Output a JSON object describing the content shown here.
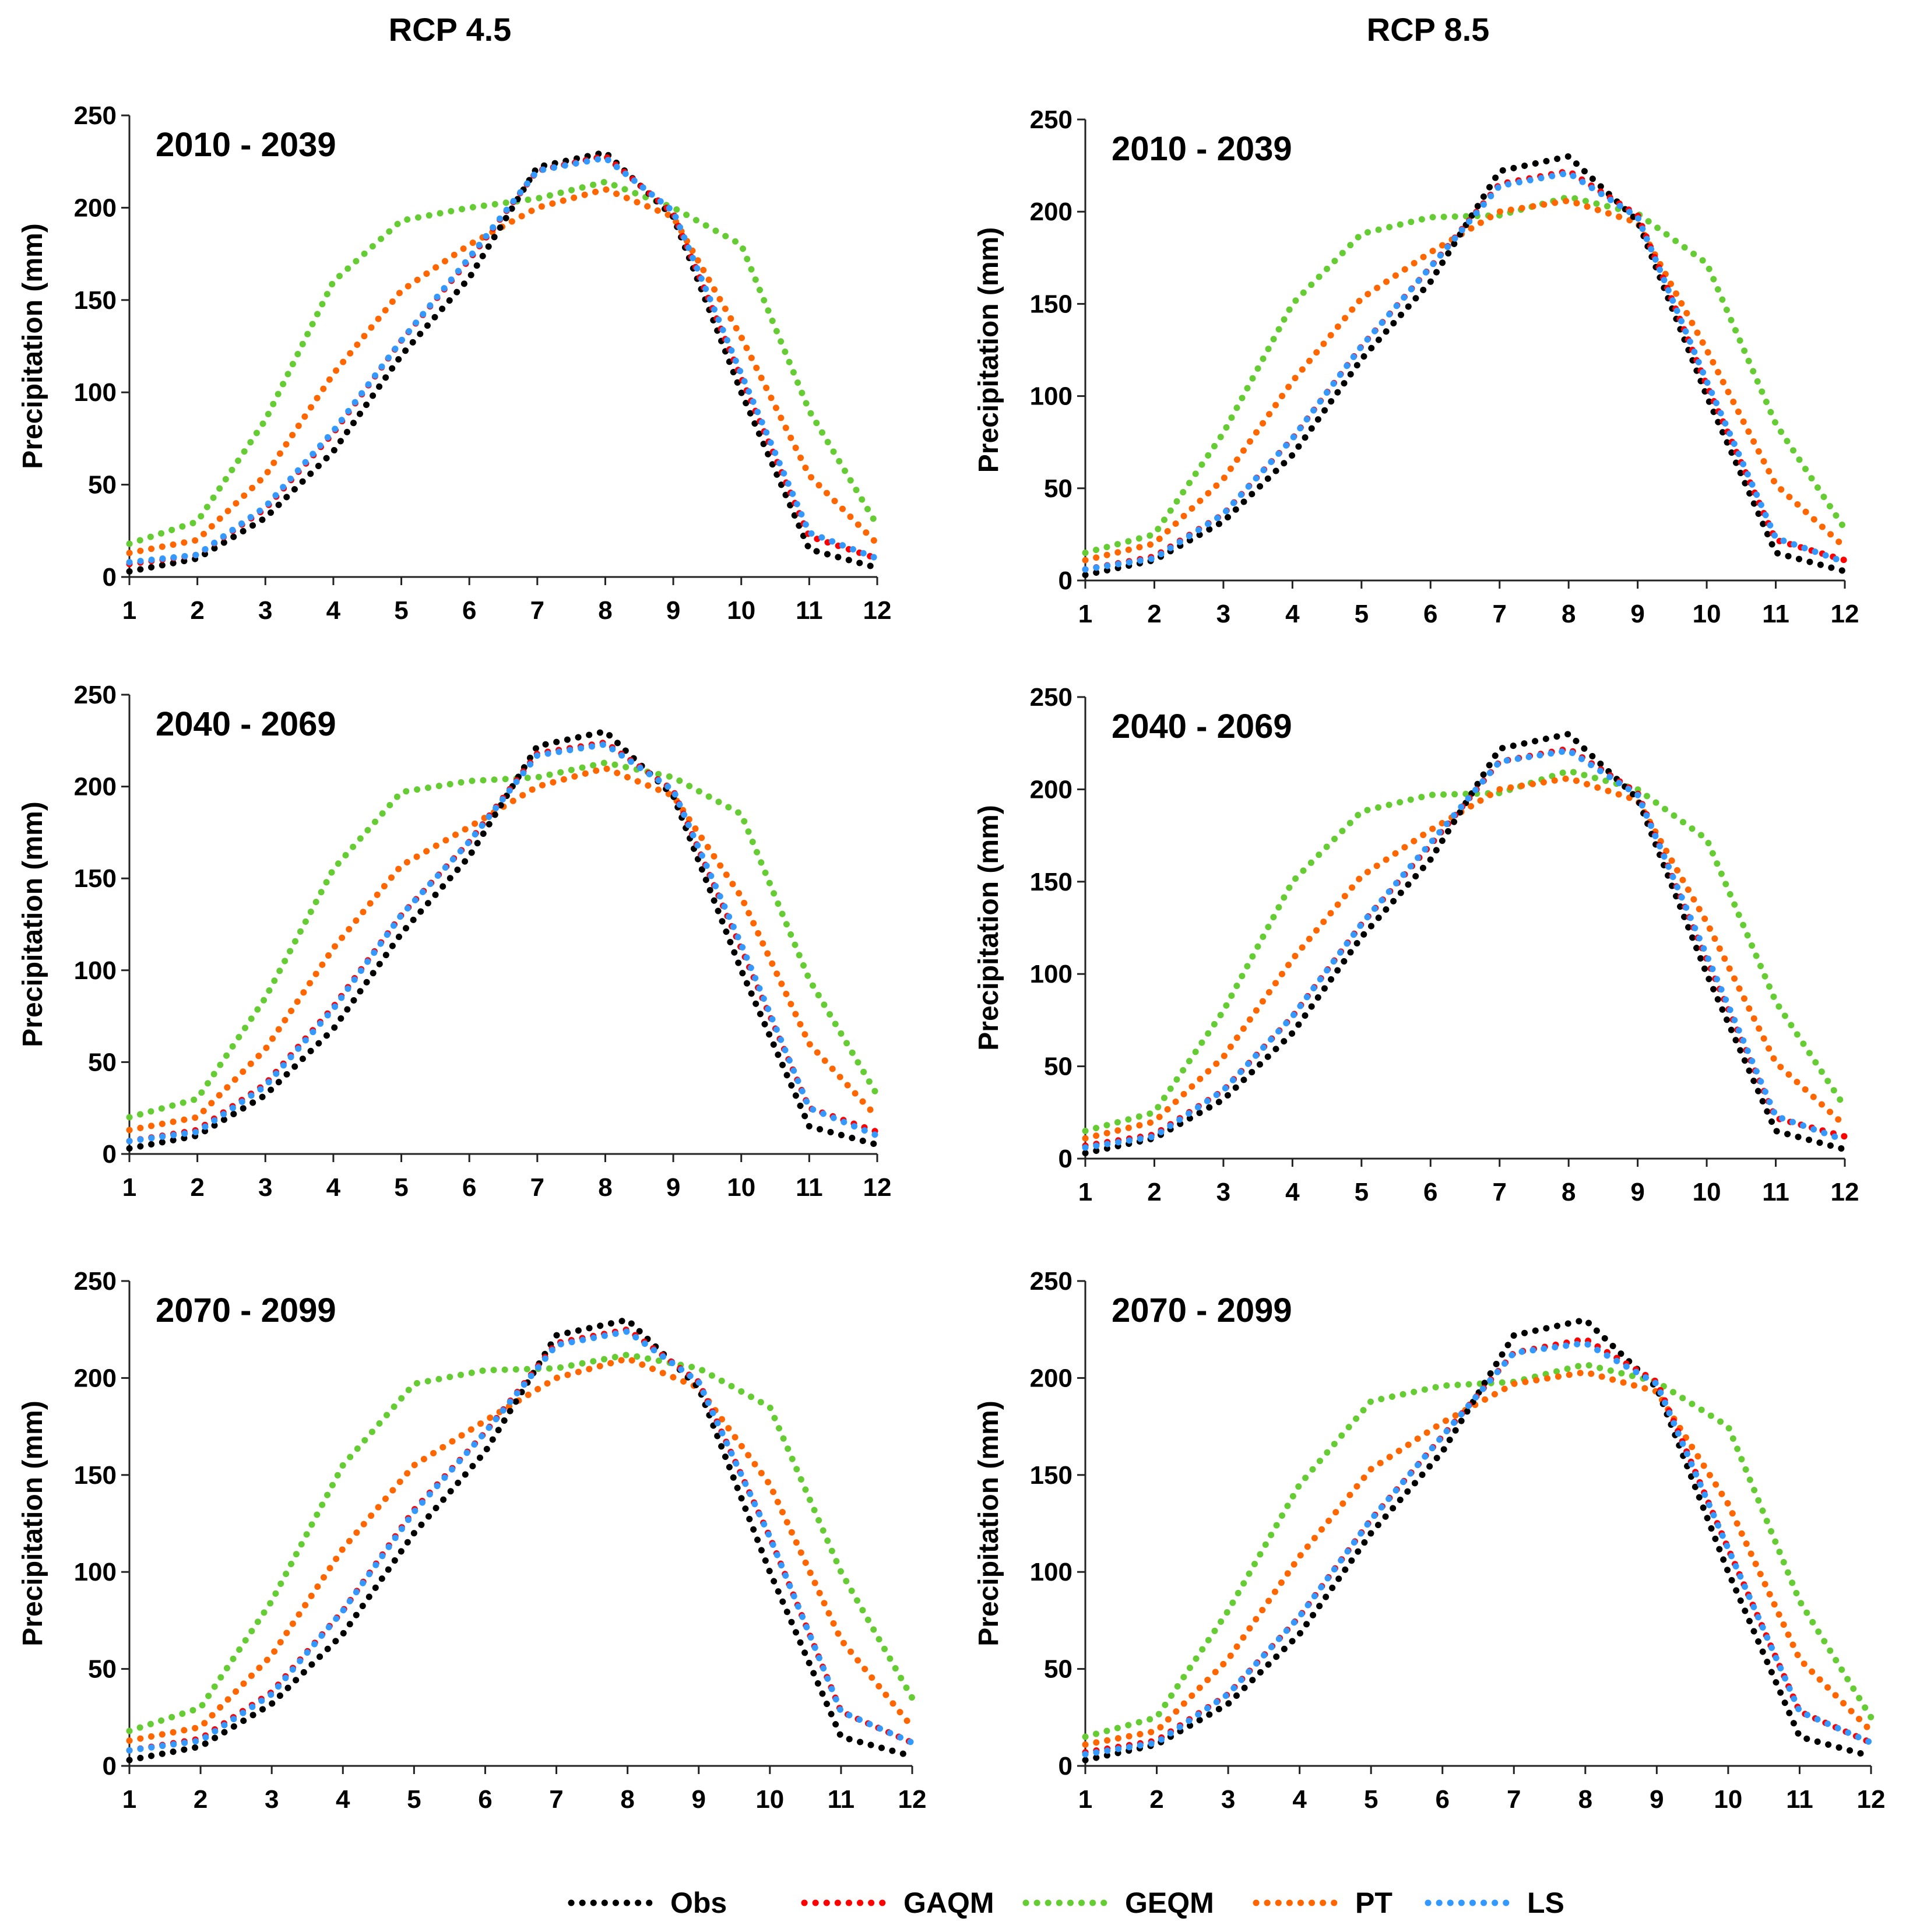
{
  "columns": [
    "RCP 4.5",
    "RCP 8.5"
  ],
  "legend": [
    {
      "name": "Obs",
      "color": "#000000"
    },
    {
      "name": "GAQM",
      "color": "#ff0000"
    },
    {
      "name": "GEQM",
      "color": "#66cc33"
    },
    {
      "name": "PT",
      "color": "#ff6600"
    },
    {
      "name": "LS",
      "color": "#3399ff"
    }
  ],
  "chart_data": [
    {
      "type": "line",
      "scenario": "RCP 4.5",
      "title": "2010 - 2039",
      "xlabel": "",
      "ylabel": "Precipitation (mm)",
      "x": [
        1,
        2,
        3,
        4,
        5,
        6,
        7,
        8,
        9,
        10,
        11,
        12
      ],
      "xticks": [
        "1",
        "2",
        "3",
        "4",
        "5",
        "6",
        "7",
        "8",
        "9",
        "10",
        "11",
        "12"
      ],
      "ylim": [
        0,
        250
      ],
      "yticks": [
        "0",
        "50",
        "100",
        "150",
        "200",
        "250"
      ],
      "series": [
        {
          "name": "Obs",
          "values": [
            3,
            10,
            32,
            68,
            120,
            162,
            222,
            230,
            195,
            100,
            15,
            5
          ]
        },
        {
          "name": "GAQM",
          "values": [
            7,
            12,
            37,
            78,
            128,
            172,
            220,
            228,
            197,
            108,
            22,
            10
          ]
        },
        {
          "name": "GEQM",
          "values": [
            18,
            30,
            85,
            160,
            193,
            200,
            205,
            214,
            200,
            180,
            90,
            28
          ]
        },
        {
          "name": "PT",
          "values": [
            13,
            20,
            55,
            110,
            155,
            180,
            200,
            210,
            195,
            130,
            55,
            18
          ]
        },
        {
          "name": "LS",
          "values": [
            8,
            12,
            38,
            79,
            128,
            173,
            220,
            227,
            198,
            110,
            24,
            10
          ]
        }
      ]
    },
    {
      "type": "line",
      "scenario": "RCP 8.5",
      "title": "2010 - 2039",
      "xlabel": "",
      "ylabel": "Precipitation (mm)",
      "x": [
        1,
        2,
        3,
        4,
        5,
        6,
        7,
        8,
        9,
        10,
        11,
        12
      ],
      "xticks": [
        "1",
        "2",
        "3",
        "4",
        "5",
        "6",
        "7",
        "8",
        "9",
        "10",
        "11",
        "12"
      ],
      "ylim": [
        0,
        250
      ],
      "yticks": [
        "0",
        "50",
        "100",
        "150",
        "200",
        "250"
      ],
      "series": [
        {
          "name": "Obs",
          "values": [
            3,
            11,
            32,
            68,
            120,
            162,
            222,
            230,
            195,
            100,
            15,
            5
          ]
        },
        {
          "name": "GAQM",
          "values": [
            6,
            13,
            36,
            77,
            127,
            170,
            215,
            222,
            198,
            106,
            22,
            11
          ]
        },
        {
          "name": "GEQM",
          "values": [
            15,
            25,
            80,
            150,
            188,
            197,
            198,
            208,
            199,
            172,
            85,
            28
          ]
        },
        {
          "name": "PT",
          "values": [
            11,
            20,
            55,
            108,
            153,
            178,
            200,
            206,
            194,
            125,
            52,
            18
          ]
        },
        {
          "name": "LS",
          "values": [
            6,
            12,
            36,
            77,
            127,
            170,
            214,
            221,
            197,
            108,
            23,
            10
          ]
        }
      ]
    },
    {
      "type": "line",
      "scenario": "RCP 4.5",
      "title": "2040 - 2069",
      "xlabel": "",
      "ylabel": "Precipitation (mm)",
      "x": [
        1,
        2,
        3,
        4,
        5,
        6,
        7,
        8,
        9,
        10,
        11,
        12
      ],
      "xticks": [
        "1",
        "2",
        "3",
        "4",
        "5",
        "6",
        "7",
        "8",
        "9",
        "10",
        "11",
        "12"
      ],
      "ylim": [
        0,
        250
      ],
      "yticks": [
        "0",
        "50",
        "100",
        "150",
        "200",
        "250"
      ],
      "series": [
        {
          "name": "Obs",
          "values": [
            3,
            10,
            32,
            68,
            120,
            162,
            222,
            230,
            195,
            100,
            15,
            5
          ]
        },
        {
          "name": "GAQM",
          "values": [
            7,
            13,
            38,
            80,
            130,
            170,
            218,
            224,
            198,
            112,
            25,
            12
          ]
        },
        {
          "name": "GEQM",
          "values": [
            20,
            30,
            85,
            155,
            197,
            203,
            205,
            213,
            205,
            185,
            95,
            32
          ]
        },
        {
          "name": "PT",
          "values": [
            13,
            20,
            57,
            112,
            157,
            178,
            200,
            210,
            195,
            140,
            60,
            20
          ]
        },
        {
          "name": "LS",
          "values": [
            7,
            12,
            37,
            79,
            130,
            170,
            217,
            223,
            198,
            114,
            25,
            10
          ]
        }
      ]
    },
    {
      "type": "line",
      "scenario": "RCP 8.5",
      "title": "2040 - 2069",
      "xlabel": "",
      "ylabel": "Precipitation (mm)",
      "x": [
        1,
        2,
        3,
        4,
        5,
        6,
        7,
        8,
        9,
        10,
        11,
        12
      ],
      "xticks": [
        "1",
        "2",
        "3",
        "4",
        "5",
        "6",
        "7",
        "8",
        "9",
        "10",
        "11",
        "12"
      ],
      "ylim": [
        0,
        250
      ],
      "yticks": [
        "0",
        "50",
        "100",
        "150",
        "200",
        "250"
      ],
      "series": [
        {
          "name": "Obs",
          "values": [
            3,
            11,
            32,
            68,
            120,
            162,
            222,
            230,
            195,
            100,
            15,
            5
          ]
        },
        {
          "name": "GAQM",
          "values": [
            7,
            13,
            37,
            77,
            127,
            170,
            215,
            222,
            198,
            108,
            22,
            12
          ]
        },
        {
          "name": "GEQM",
          "values": [
            15,
            25,
            80,
            150,
            188,
            197,
            198,
            210,
            200,
            173,
            85,
            28
          ]
        },
        {
          "name": "PT",
          "values": [
            11,
            20,
            55,
            108,
            153,
            178,
            200,
            206,
            194,
            128,
            52,
            18
          ]
        },
        {
          "name": "LS",
          "values": [
            6,
            12,
            37,
            77,
            127,
            171,
            215,
            221,
            197,
            110,
            23,
            10
          ]
        }
      ]
    },
    {
      "type": "line",
      "scenario": "RCP 4.5",
      "title": "2070 - 2099",
      "xlabel": "",
      "ylabel": "Precipitation (mm)",
      "x": [
        1,
        2,
        3,
        4,
        5,
        6,
        7,
        8,
        9,
        10,
        11,
        12
      ],
      "xticks": [
        "1",
        "2",
        "3",
        "4",
        "5",
        "6",
        "7",
        "8",
        "9",
        "10",
        "11",
        "12"
      ],
      "ylim": [
        0,
        250
      ],
      "yticks": [
        "0",
        "50",
        "100",
        "150",
        "200",
        "250"
      ],
      "series": [
        {
          "name": "Obs",
          "values": [
            3,
            10,
            32,
            68,
            120,
            162,
            222,
            230,
            195,
            100,
            15,
            5
          ]
        },
        {
          "name": "GAQM",
          "values": [
            8,
            14,
            38,
            80,
            132,
            172,
            218,
            225,
            198,
            118,
            28,
            12
          ]
        },
        {
          "name": "GEQM",
          "values": [
            18,
            30,
            85,
            155,
            197,
            204,
            205,
            212,
            205,
            185,
            100,
            35
          ]
        },
        {
          "name": "PT",
          "values": [
            13,
            20,
            57,
            112,
            155,
            178,
            200,
            210,
            195,
            145,
            65,
            20
          ]
        },
        {
          "name": "LS",
          "values": [
            8,
            13,
            37,
            80,
            131,
            172,
            217,
            224,
            198,
            118,
            28,
            12
          ]
        }
      ]
    },
    {
      "type": "line",
      "scenario": "RCP 8.5",
      "title": "2070 - 2099",
      "xlabel": "",
      "ylabel": "Precipitation (mm)",
      "x": [
        1,
        2,
        3,
        4,
        5,
        6,
        7,
        8,
        9,
        10,
        11,
        12
      ],
      "xticks": [
        "1",
        "2",
        "3",
        "4",
        "5",
        "6",
        "7",
        "8",
        "9",
        "10",
        "11",
        "12"
      ],
      "ylim": [
        0,
        250
      ],
      "yticks": [
        "0",
        "50",
        "100",
        "150",
        "200",
        "250"
      ],
      "series": [
        {
          "name": "Obs",
          "values": [
            3,
            11,
            32,
            68,
            120,
            162,
            222,
            230,
            195,
            100,
            15,
            5
          ]
        },
        {
          "name": "GAQM",
          "values": [
            7,
            13,
            37,
            77,
            127,
            170,
            213,
            220,
            198,
            112,
            28,
            12
          ]
        },
        {
          "name": "GEQM",
          "values": [
            15,
            25,
            80,
            145,
            188,
            196,
            198,
            207,
            198,
            175,
            85,
            25
          ]
        },
        {
          "name": "PT",
          "values": [
            11,
            18,
            55,
            108,
            153,
            177,
            197,
            203,
            193,
            135,
            55,
            18
          ]
        },
        {
          "name": "LS",
          "values": [
            6,
            12,
            37,
            77,
            127,
            170,
            213,
            218,
            197,
            112,
            28,
            12
          ]
        }
      ]
    }
  ]
}
